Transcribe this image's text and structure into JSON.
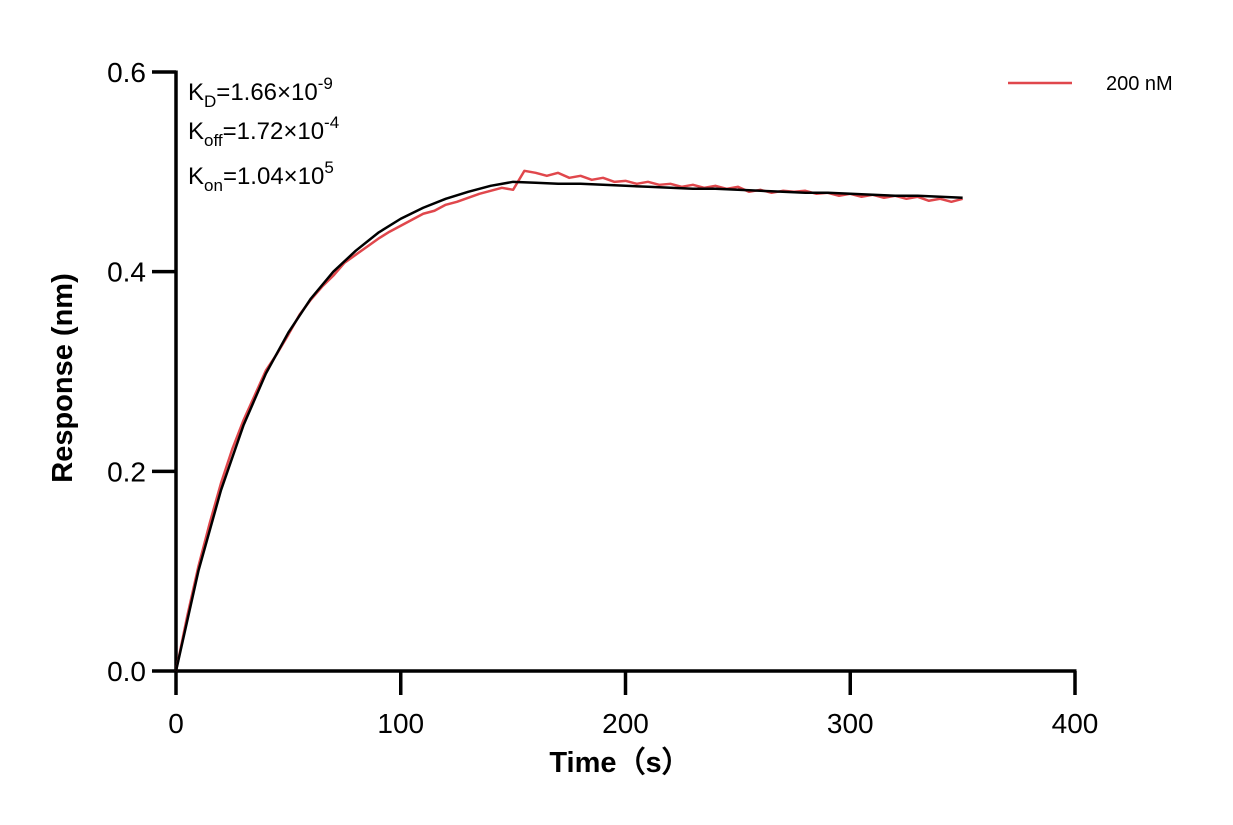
{
  "chart_data": {
    "type": "line",
    "x_label": "Time（s）",
    "y_label": "Response (nm)",
    "xlim": [
      0,
      400
    ],
    "xticks": [
      0,
      100,
      200,
      300,
      400
    ],
    "ylim": [
      0,
      0.6
    ],
    "yticks": [
      {
        "value": 0,
        "label": "0.0"
      },
      0.2,
      0.4,
      0.6
    ],
    "grid": false,
    "legend": "upper right",
    "annotations": [
      {
        "base": "K",
        "sub": "D",
        "text": "=1.66×10",
        "sup": "-9"
      },
      {
        "base": "K",
        "sub": "off",
        "text": "=1.72×10",
        "sup": "-4"
      },
      {
        "base": "K",
        "sub": "on",
        "text": "=1.04×10",
        "sup": "5"
      }
    ],
    "series": [
      {
        "name": "200 nM",
        "color": "#e0474c",
        "x": [
          0,
          5,
          10,
          15,
          20,
          25,
          30,
          35,
          40,
          45,
          50,
          55,
          60,
          65,
          70,
          75,
          80,
          85,
          90,
          95,
          100,
          105,
          110,
          115,
          120,
          125,
          130,
          135,
          140,
          145,
          150,
          155,
          160,
          165,
          170,
          175,
          180,
          185,
          190,
          195,
          200,
          205,
          210,
          215,
          220,
          225,
          230,
          235,
          240,
          245,
          250,
          255,
          260,
          265,
          270,
          275,
          280,
          285,
          290,
          295,
          300,
          305,
          310,
          315,
          320,
          325,
          330,
          335,
          340,
          345,
          350
        ],
        "values": [
          0,
          0.055,
          0.105,
          0.148,
          0.188,
          0.222,
          0.251,
          0.276,
          0.301,
          0.318,
          0.337,
          0.357,
          0.372,
          0.385,
          0.396,
          0.409,
          0.417,
          0.425,
          0.433,
          0.44,
          0.446,
          0.452,
          0.458,
          0.461,
          0.467,
          0.47,
          0.474,
          0.478,
          0.481,
          0.484,
          0.482,
          0.501,
          0.499,
          0.496,
          0.499,
          0.494,
          0.496,
          0.492,
          0.494,
          0.49,
          0.491,
          0.488,
          0.49,
          0.487,
          0.488,
          0.485,
          0.487,
          0.484,
          0.486,
          0.483,
          0.485,
          0.48,
          0.482,
          0.479,
          0.481,
          0.48,
          0.481,
          0.478,
          0.479,
          0.476,
          0.478,
          0.475,
          0.477,
          0.474,
          0.476,
          0.473,
          0.475,
          0.471,
          0.473,
          0.47,
          0.473
        ]
      },
      {
        "color": "#000000",
        "x": [
          0,
          10,
          20,
          30,
          40,
          50,
          60,
          70,
          80,
          90,
          100,
          110,
          120,
          130,
          140,
          150,
          160,
          170,
          180,
          190,
          200,
          210,
          220,
          230,
          240,
          250,
          260,
          270,
          280,
          290,
          300,
          310,
          320,
          330,
          340,
          350
        ],
        "values": [
          0,
          0.1005,
          0.181,
          0.246,
          0.298,
          0.339,
          0.373,
          0.4,
          0.421,
          0.439,
          0.453,
          0.464,
          0.473,
          0.48,
          0.486,
          0.49,
          0.489,
          0.488,
          0.488,
          0.487,
          0.486,
          0.485,
          0.484,
          0.483,
          0.483,
          0.482,
          0.481,
          0.48,
          0.479,
          0.479,
          0.478,
          0.477,
          0.476,
          0.476,
          0.475,
          0.474
        ]
      }
    ]
  }
}
